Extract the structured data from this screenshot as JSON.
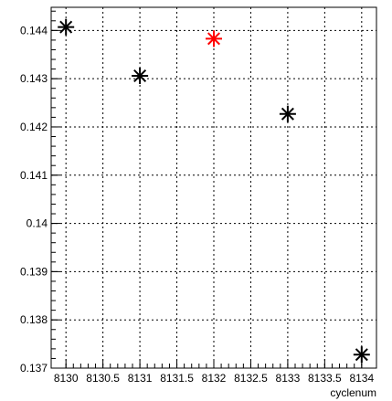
{
  "chart_data": {
    "type": "scatter",
    "title": "",
    "xlabel": "cyclenum",
    "ylabel": "",
    "xlim": [
      8129.8,
      8134.2
    ],
    "ylim": [
      0.137,
      0.14448
    ],
    "x_ticks": [
      8130,
      8130.5,
      8131,
      8131.5,
      8132,
      8132.5,
      8133,
      8133.5,
      8134
    ],
    "x_tick_labels": [
      "8130",
      "8130.5",
      "8131",
      "8131.5",
      "8132",
      "8132.5",
      "8133",
      "8133.5",
      "8134"
    ],
    "y_ticks": [
      0.137,
      0.138,
      0.139,
      0.14,
      0.141,
      0.142,
      0.143,
      0.144
    ],
    "y_tick_labels": [
      "0.137",
      "0.138",
      "0.139",
      "0.14",
      "0.141",
      "0.142",
      "0.143",
      "0.144"
    ],
    "grid": true,
    "marker": "asterisk",
    "points": [
      {
        "x": 8130,
        "y": 0.14407,
        "color": "#000000"
      },
      {
        "x": 8131,
        "y": 0.14306,
        "color": "#000000"
      },
      {
        "x": 8132,
        "y": 0.14383,
        "color": "#ff0000"
      },
      {
        "x": 8133,
        "y": 0.14227,
        "color": "#000000"
      },
      {
        "x": 8134,
        "y": 0.13728,
        "color": "#000000"
      }
    ]
  }
}
